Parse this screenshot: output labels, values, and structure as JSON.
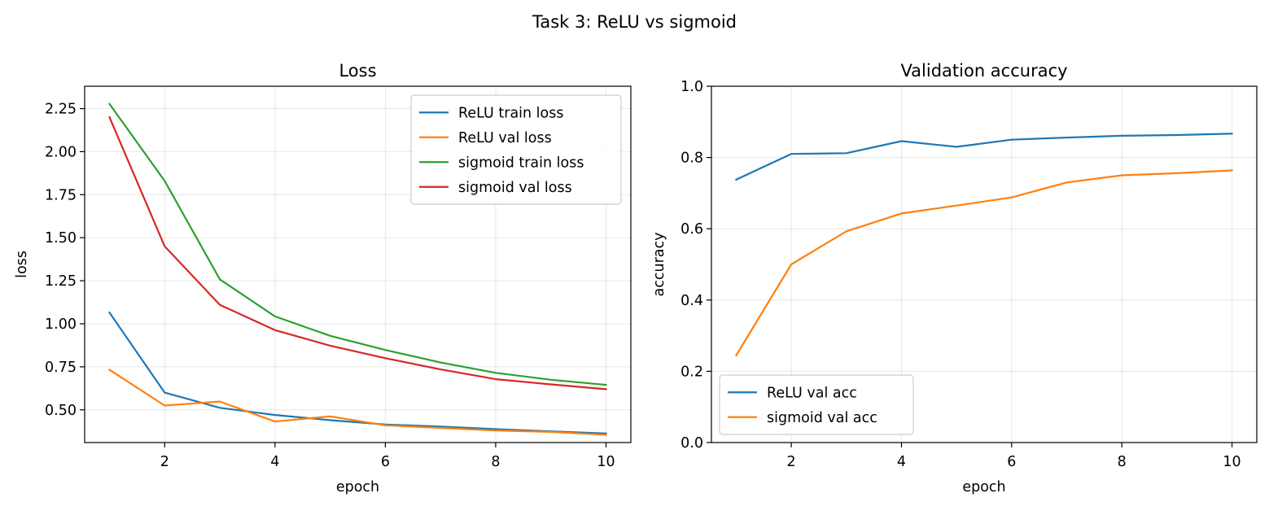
{
  "suptitle": "Task 3: ReLU vs sigmoid",
  "chart_data": [
    {
      "type": "line",
      "title": "Loss",
      "xlabel": "epoch",
      "ylabel": "loss",
      "xlim": [
        0.55,
        10.45
      ],
      "ylim": [
        0.31,
        2.38
      ],
      "xticks": [
        2,
        4,
        6,
        8,
        10
      ],
      "yticks": [
        0.5,
        0.75,
        1.0,
        1.25,
        1.5,
        1.75,
        2.0,
        2.25
      ],
      "ytick_labels": [
        "0.50",
        "0.75",
        "1.00",
        "1.25",
        "1.50",
        "1.75",
        "2.00",
        "2.25"
      ],
      "grid": true,
      "legend_position": "upper right",
      "x": [
        1,
        2,
        3,
        4,
        5,
        6,
        7,
        8,
        9,
        10
      ],
      "series": [
        {
          "name": "ReLU train loss",
          "color": "#1f77b4",
          "values": [
            1.065,
            0.6,
            0.512,
            0.47,
            0.44,
            0.415,
            0.403,
            0.388,
            0.375,
            0.363
          ]
        },
        {
          "name": "ReLU val loss",
          "color": "#ff7f0e",
          "values": [
            0.733,
            0.525,
            0.548,
            0.432,
            0.462,
            0.41,
            0.395,
            0.38,
            0.372,
            0.355
          ]
        },
        {
          "name": "sigmoid train loss",
          "color": "#2ca02c",
          "values": [
            2.277,
            1.83,
            1.258,
            1.043,
            0.93,
            0.848,
            0.775,
            0.715,
            0.675,
            0.645
          ]
        },
        {
          "name": "sigmoid val loss",
          "color": "#d62728",
          "values": [
            2.2,
            1.45,
            1.11,
            0.963,
            0.873,
            0.8,
            0.735,
            0.678,
            0.648,
            0.62
          ]
        }
      ]
    },
    {
      "type": "line",
      "title": "Validation accuracy",
      "xlabel": "epoch",
      "ylabel": "accuracy",
      "xlim": [
        0.55,
        10.45
      ],
      "ylim": [
        0.0,
        1.0
      ],
      "xticks": [
        2,
        4,
        6,
        8,
        10
      ],
      "yticks": [
        0.0,
        0.2,
        0.4,
        0.6,
        0.8,
        1.0
      ],
      "ytick_labels": [
        "0.0",
        "0.2",
        "0.4",
        "0.6",
        "0.8",
        "1.0"
      ],
      "grid": true,
      "legend_position": "lower left",
      "x": [
        1,
        2,
        3,
        4,
        5,
        6,
        7,
        8,
        9,
        10
      ],
      "series": [
        {
          "name": "ReLU val acc",
          "color": "#1f77b4",
          "values": [
            0.738,
            0.81,
            0.812,
            0.846,
            0.83,
            0.85,
            0.856,
            0.861,
            0.863,
            0.867
          ]
        },
        {
          "name": "sigmoid val acc",
          "color": "#ff7f0e",
          "values": [
            0.245,
            0.5,
            0.593,
            0.643,
            0.665,
            0.688,
            0.73,
            0.75,
            0.756,
            0.764
          ]
        }
      ]
    }
  ]
}
